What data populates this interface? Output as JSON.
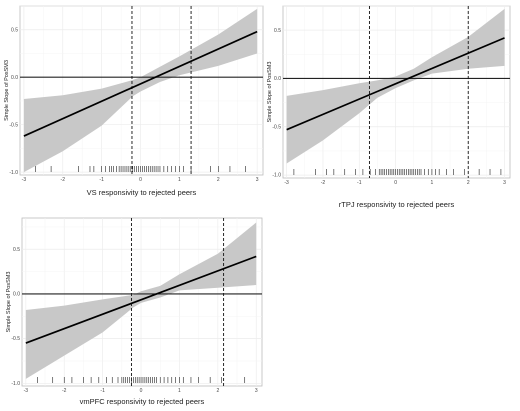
{
  "chart_data": [
    {
      "type": "line",
      "xlabel": "VS responsivity to rejected peers",
      "ylabel": "Simple Slope of  PosSM3",
      "xlim": [
        -3.1,
        3.15
      ],
      "ylim": [
        -1.03,
        0.75
      ],
      "xticks": [
        "-3",
        "-2",
        "-1",
        "0",
        "1",
        "2",
        "3"
      ],
      "yticks": [
        "-1.0",
        "-0.5",
        "0.0",
        "0.5"
      ],
      "line": {
        "x": [
          -3,
          3
        ],
        "y": [
          -0.62,
          0.48
        ]
      },
      "band_upper": [
        [
          -3,
          -0.23
        ],
        [
          -2,
          -0.19
        ],
        [
          -1,
          -0.12
        ],
        [
          -0.2,
          -0.03
        ],
        [
          0,
          0.0
        ],
        [
          0.5,
          0.11
        ],
        [
          1,
          0.22
        ],
        [
          2,
          0.45
        ],
        [
          3,
          0.72
        ]
      ],
      "band_lower": [
        [
          -3,
          -1.0
        ],
        [
          -2,
          -0.78
        ],
        [
          -1,
          -0.51
        ],
        [
          -0.2,
          -0.2
        ],
        [
          0,
          -0.15
        ],
        [
          0.5,
          -0.05
        ],
        [
          1,
          0.02
        ],
        [
          2,
          0.12
        ],
        [
          3,
          0.25
        ]
      ],
      "hline": 0.0,
      "vlines": [
        -0.22,
        1.3
      ],
      "rug": [
        -2.7,
        -2.3,
        -1.6,
        -1.3,
        -1.2,
        -1.0,
        -0.9,
        -0.8,
        -0.75,
        -0.7,
        -0.62,
        -0.55,
        -0.5,
        -0.45,
        -0.4,
        -0.35,
        -0.3,
        -0.25,
        -0.2,
        -0.15,
        -0.1,
        -0.05,
        0.0,
        0.05,
        0.1,
        0.15,
        0.2,
        0.25,
        0.3,
        0.35,
        0.4,
        0.45,
        0.5,
        0.6,
        0.7,
        0.8,
        0.9,
        1.0,
        1.1,
        1.3,
        1.8,
        2.0,
        2.3,
        2.7
      ],
      "grid": true
    },
    {
      "type": "line",
      "xlabel": "rTPJ responsivity to rejected peers",
      "ylabel": "Simple Slope of  PosSM3",
      "xlim": [
        -3.1,
        3.15
      ],
      "ylim": [
        -1.03,
        0.75
      ],
      "xticks": [
        "-3",
        "-2",
        "-1",
        "0",
        "1",
        "2",
        "3"
      ],
      "yticks": [
        "-1.0",
        "-0.5",
        "0.0",
        "0.5"
      ],
      "line": {
        "x": [
          -3,
          3
        ],
        "y": [
          -0.53,
          0.42
        ]
      },
      "band_upper": [
        [
          -3,
          -0.18
        ],
        [
          -2,
          -0.12
        ],
        [
          -1,
          -0.05
        ],
        [
          -0.5,
          -0.02
        ],
        [
          0,
          0.02
        ],
        [
          0.5,
          0.1
        ],
        [
          1,
          0.22
        ],
        [
          2,
          0.43
        ],
        [
          3,
          0.72
        ]
      ],
      "band_lower": [
        [
          -3,
          -0.88
        ],
        [
          -2,
          -0.64
        ],
        [
          -1,
          -0.36
        ],
        [
          -0.5,
          -0.2
        ],
        [
          0,
          -0.1
        ],
        [
          0.5,
          -0.02
        ],
        [
          1,
          0.05
        ],
        [
          2,
          0.1
        ],
        [
          3,
          0.13
        ]
      ],
      "hline": 0.0,
      "vlines": [
        -0.72,
        2.0
      ],
      "rug": [
        -2.8,
        -2.2,
        -1.9,
        -1.7,
        -1.4,
        -1.1,
        -0.9,
        -0.7,
        -0.55,
        -0.45,
        -0.4,
        -0.35,
        -0.3,
        -0.25,
        -0.2,
        -0.15,
        -0.1,
        -0.05,
        0.0,
        0.05,
        0.1,
        0.15,
        0.2,
        0.25,
        0.3,
        0.35,
        0.4,
        0.45,
        0.5,
        0.55,
        0.6,
        0.65,
        0.7,
        0.8,
        0.9,
        1.0,
        1.1,
        1.2,
        1.4,
        1.6,
        1.9,
        2.3,
        2.6,
        2.9
      ],
      "grid": true
    },
    {
      "type": "line",
      "xlabel": "vmPFC responsivity to rejected peers",
      "ylabel": "Simple Slope of  PosSM3",
      "xlim": [
        -3.1,
        3.15
      ],
      "ylim": [
        -1.03,
        0.85
      ],
      "xticks": [
        "-3",
        "-2",
        "-1",
        "0",
        "1",
        "2",
        "3"
      ],
      "yticks": [
        "-1.0",
        "-0.5",
        "0.0",
        "0.5"
      ],
      "line": {
        "x": [
          -3,
          3
        ],
        "y": [
          -0.55,
          0.42
        ]
      },
      "band_upper": [
        [
          -3,
          -0.18
        ],
        [
          -2,
          -0.13
        ],
        [
          -1,
          -0.06
        ],
        [
          -0.2,
          -0.01
        ],
        [
          0,
          0.03
        ],
        [
          0.5,
          0.09
        ],
        [
          1,
          0.22
        ],
        [
          2,
          0.45
        ],
        [
          3,
          0.8
        ]
      ],
      "band_lower": [
        [
          -3,
          -0.95
        ],
        [
          -2,
          -0.69
        ],
        [
          -1,
          -0.43
        ],
        [
          -0.2,
          -0.15
        ],
        [
          0,
          -0.1
        ],
        [
          0.5,
          -0.04
        ],
        [
          1,
          0.04
        ],
        [
          2,
          0.07
        ],
        [
          3,
          0.1
        ]
      ],
      "hline": 0.0,
      "vlines": [
        -0.25,
        2.15
      ],
      "rug": [
        -2.7,
        -2.3,
        -2.0,
        -1.8,
        -1.5,
        -1.3,
        -1.1,
        -0.9,
        -0.75,
        -0.6,
        -0.5,
        -0.45,
        -0.4,
        -0.35,
        -0.3,
        -0.25,
        -0.2,
        -0.15,
        -0.1,
        -0.05,
        0.0,
        0.05,
        0.1,
        0.15,
        0.2,
        0.25,
        0.3,
        0.35,
        0.4,
        0.5,
        0.6,
        0.7,
        0.8,
        0.9,
        1.0,
        1.1,
        1.3,
        1.5,
        1.8,
        2.1,
        2.7
      ],
      "grid": true
    }
  ]
}
